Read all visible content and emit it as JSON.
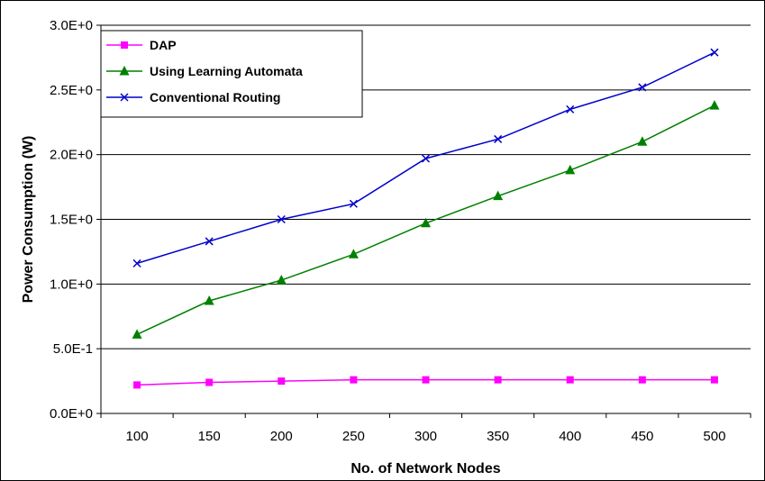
{
  "chart_data": {
    "type": "line",
    "title": "",
    "xlabel": "No. of Network Nodes",
    "ylabel": "Power Consumption (W)",
    "categories": [
      "100",
      "150",
      "200",
      "250",
      "300",
      "350",
      "400",
      "450",
      "500"
    ],
    "ylim": [
      0,
      3.0
    ],
    "y_ticks": [
      "0.0E+0",
      "5.0E-1",
      "1.0E+0",
      "1.5E+0",
      "2.0E+0",
      "2.5E+0",
      "3.0E+0"
    ],
    "grid": true,
    "legend": "top-left",
    "series": [
      {
        "name": "DAP",
        "color": "#ff00ff",
        "marker": "square",
        "values": [
          0.22,
          0.24,
          0.25,
          0.26,
          0.26,
          0.26,
          0.26,
          0.26,
          0.26
        ]
      },
      {
        "name": "Using Learning Automata",
        "color": "#008000",
        "marker": "triangle",
        "values": [
          0.61,
          0.87,
          1.03,
          1.23,
          1.47,
          1.68,
          1.88,
          2.1,
          2.38
        ]
      },
      {
        "name": "Conventional Routing",
        "color": "#0000cc",
        "marker": "x",
        "values": [
          1.16,
          1.33,
          1.5,
          1.62,
          1.97,
          2.12,
          2.35,
          2.52,
          2.79
        ]
      }
    ]
  }
}
